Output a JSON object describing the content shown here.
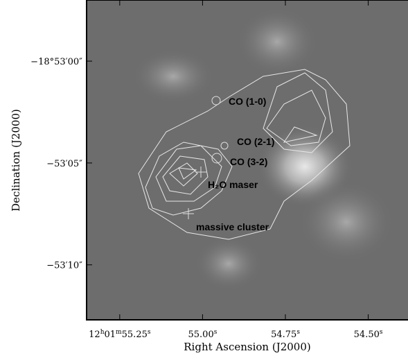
{
  "chart_data": {
    "type": "image",
    "xlabel": "Right Ascension (J2000)",
    "ylabel": "Declination (J2000)",
    "xlim": [
      55.35,
      54.38
    ],
    "ylim": [
      3,
      -12.7
    ],
    "xticks": [
      {
        "value": 55.25,
        "label": "12h01m55.25s"
      },
      {
        "value": 55.0,
        "label": "55.00s"
      },
      {
        "value": 54.75,
        "label": "54.75s"
      },
      {
        "value": 54.5,
        "label": "54.50s"
      }
    ],
    "yticks": [
      {
        "value": 0,
        "label": "−18°53′00″"
      },
      {
        "value": -5,
        "label": "−53′05″"
      },
      {
        "value": -10,
        "label": "−53′10″"
      }
    ],
    "annotations": [
      "CO (1-0)",
      "CO (2-1)",
      "CO (3-2)",
      "H₂O maser",
      "massive cluster"
    ]
  }
}
